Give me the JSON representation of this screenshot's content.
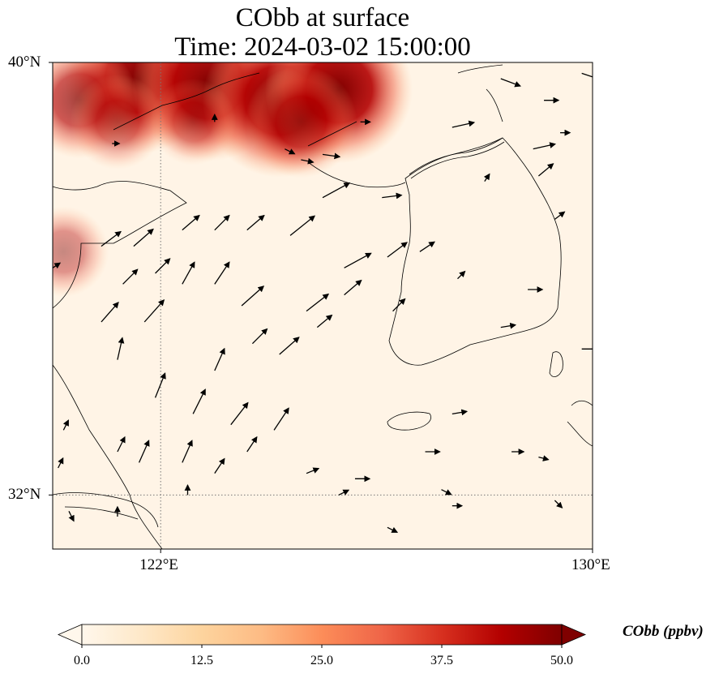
{
  "title": {
    "line1": "CObb at surface",
    "line2": "Time: 2024-03-02 15:00:00"
  },
  "map": {
    "lat_range": [
      31,
      40
    ],
    "lon_range": [
      120,
      130
    ],
    "gridlines": {
      "lats": [
        32
      ],
      "lons": [
        122
      ]
    },
    "yticks": [
      {
        "lat": 40,
        "label": "40°N"
      },
      {
        "lat": 32,
        "label": "32°N"
      }
    ],
    "xticks": [
      {
        "lon": 122,
        "label": "122°E"
      },
      {
        "lon": 130,
        "label": "130°E"
      }
    ],
    "plume": {
      "description_color": "#7f0000",
      "blobs": [
        {
          "lon": 121.6,
          "lat": 39.7,
          "value": 48
        },
        {
          "lon": 122.9,
          "lat": 39.6,
          "value": 50
        },
        {
          "lon": 124.2,
          "lat": 39.3,
          "value": 50
        },
        {
          "lon": 125.3,
          "lat": 39.5,
          "value": 47
        },
        {
          "lon": 120.5,
          "lat": 39.3,
          "value": 32
        },
        {
          "lon": 121.2,
          "lat": 38.9,
          "value": 22
        },
        {
          "lon": 122.6,
          "lat": 38.9,
          "value": 18
        },
        {
          "lon": 120.2,
          "lat": 36.5,
          "value": 20
        },
        {
          "lon": 124.6,
          "lat": 38.9,
          "value": 30
        }
      ]
    },
    "wind_vectors": [
      {
        "lon": 120.9,
        "lat": 36.6,
        "u": 0.4,
        "v": 0.3
      },
      {
        "lon": 121.5,
        "lat": 36.6,
        "u": 0.4,
        "v": 0.35
      },
      {
        "lon": 122.4,
        "lat": 36.9,
        "u": 0.35,
        "v": 0.3
      },
      {
        "lon": 123.0,
        "lat": 36.9,
        "u": 0.3,
        "v": 0.3
      },
      {
        "lon": 123.6,
        "lat": 36.9,
        "u": 0.35,
        "v": 0.3
      },
      {
        "lon": 124.4,
        "lat": 36.8,
        "u": 0.5,
        "v": 0.4
      },
      {
        "lon": 125.0,
        "lat": 37.5,
        "u": 0.55,
        "v": 0.3
      },
      {
        "lon": 123.0,
        "lat": 35.9,
        "u": 0.3,
        "v": 0.45
      },
      {
        "lon": 122.4,
        "lat": 35.9,
        "u": 0.25,
        "v": 0.45
      },
      {
        "lon": 121.9,
        "lat": 36.1,
        "u": 0.3,
        "v": 0.3
      },
      {
        "lon": 121.3,
        "lat": 35.9,
        "u": 0.3,
        "v": 0.3
      },
      {
        "lon": 120.9,
        "lat": 35.2,
        "u": 0.35,
        "v": 0.4
      },
      {
        "lon": 121.7,
        "lat": 35.2,
        "u": 0.4,
        "v": 0.45
      },
      {
        "lon": 123.5,
        "lat": 35.5,
        "u": 0.45,
        "v": 0.4
      },
      {
        "lon": 124.7,
        "lat": 35.4,
        "u": 0.45,
        "v": 0.35
      },
      {
        "lon": 125.4,
        "lat": 36.2,
        "u": 0.55,
        "v": 0.3
      },
      {
        "lon": 126.2,
        "lat": 36.4,
        "u": 0.4,
        "v": 0.3
      },
      {
        "lon": 126.3,
        "lat": 35.4,
        "u": 0.25,
        "v": 0.25
      },
      {
        "lon": 124.2,
        "lat": 34.6,
        "u": 0.4,
        "v": 0.35
      },
      {
        "lon": 123.0,
        "lat": 34.3,
        "u": 0.2,
        "v": 0.45
      },
      {
        "lon": 122.6,
        "lat": 33.5,
        "u": 0.25,
        "v": 0.5
      },
      {
        "lon": 123.3,
        "lat": 33.3,
        "u": 0.35,
        "v": 0.45
      },
      {
        "lon": 124.1,
        "lat": 33.2,
        "u": 0.3,
        "v": 0.45
      },
      {
        "lon": 121.9,
        "lat": 33.8,
        "u": 0.2,
        "v": 0.5
      },
      {
        "lon": 121.2,
        "lat": 32.8,
        "u": 0.15,
        "v": 0.3
      },
      {
        "lon": 121.6,
        "lat": 32.6,
        "u": 0.2,
        "v": 0.45
      },
      {
        "lon": 122.4,
        "lat": 32.6,
        "u": 0.2,
        "v": 0.45
      },
      {
        "lon": 123.0,
        "lat": 32.4,
        "u": 0.2,
        "v": 0.3
      },
      {
        "lon": 123.6,
        "lat": 32.8,
        "u": 0.2,
        "v": 0.3
      },
      {
        "lon": 124.7,
        "lat": 32.4,
        "u": 0.25,
        "v": 0.1
      },
      {
        "lon": 125.3,
        "lat": 32.0,
        "u": 0.2,
        "v": 0.1
      },
      {
        "lon": 125.6,
        "lat": 32.3,
        "u": 0.3,
        "v": 0.0
      },
      {
        "lon": 126.9,
        "lat": 32.8,
        "u": 0.3,
        "v": 0.0
      },
      {
        "lon": 127.4,
        "lat": 33.5,
        "u": 0.3,
        "v": 0.05
      },
      {
        "lon": 127.2,
        "lat": 32.1,
        "u": 0.2,
        "v": -0.1
      },
      {
        "lon": 126.2,
        "lat": 31.4,
        "u": 0.2,
        "v": -0.1
      },
      {
        "lon": 127.4,
        "lat": 31.8,
        "u": 0.2,
        "v": 0.0
      },
      {
        "lon": 128.5,
        "lat": 32.8,
        "u": 0.25,
        "v": 0.0
      },
      {
        "lon": 129.0,
        "lat": 32.7,
        "u": 0.2,
        "v": -0.05
      },
      {
        "lon": 129.3,
        "lat": 31.9,
        "u": 0.15,
        "v": -0.15
      },
      {
        "lon": 123.7,
        "lat": 34.8,
        "u": 0.3,
        "v": 0.3
      },
      {
        "lon": 121.2,
        "lat": 34.5,
        "u": 0.1,
        "v": 0.45
      },
      {
        "lon": 125.4,
        "lat": 35.7,
        "u": 0.35,
        "v": 0.3
      },
      {
        "lon": 124.9,
        "lat": 35.1,
        "u": 0.3,
        "v": 0.25
      },
      {
        "lon": 126.8,
        "lat": 36.5,
        "u": 0.3,
        "v": 0.2
      },
      {
        "lon": 128.8,
        "lat": 35.8,
        "u": 0.3,
        "v": 0.0
      },
      {
        "lon": 129.8,
        "lat": 34.7,
        "u": 0.35,
        "v": 0.0
      },
      {
        "lon": 127.5,
        "lat": 36.0,
        "u": 0.15,
        "v": 0.15
      },
      {
        "lon": 126.1,
        "lat": 37.5,
        "u": 0.4,
        "v": 0.05
      },
      {
        "lon": 128.3,
        "lat": 35.1,
        "u": 0.3,
        "v": 0.05
      },
      {
        "lon": 128.0,
        "lat": 37.8,
        "u": 0.1,
        "v": 0.15
      },
      {
        "lon": 128.9,
        "lat": 38.4,
        "u": 0.45,
        "v": 0.1
      },
      {
        "lon": 129.0,
        "lat": 37.9,
        "u": 0.3,
        "v": 0.25
      },
      {
        "lon": 129.3,
        "lat": 37.1,
        "u": 0.2,
        "v": 0.15
      },
      {
        "lon": 129.4,
        "lat": 38.7,
        "u": 0.2,
        "v": 0.0
      },
      {
        "lon": 129.1,
        "lat": 39.3,
        "u": 0.3,
        "v": 0.0
      },
      {
        "lon": 128.3,
        "lat": 39.7,
        "u": 0.4,
        "v": -0.15
      },
      {
        "lon": 129.8,
        "lat": 39.8,
        "u": 0.45,
        "v": -0.15
      },
      {
        "lon": 127.4,
        "lat": 38.8,
        "u": 0.45,
        "v": 0.1
      },
      {
        "lon": 125.0,
        "lat": 38.3,
        "u": 0.35,
        "v": -0.05
      },
      {
        "lon": 124.3,
        "lat": 38.4,
        "u": 0.2,
        "v": -0.1
      },
      {
        "lon": 123.0,
        "lat": 38.9,
        "u": 0.0,
        "v": 0.15
      },
      {
        "lon": 121.1,
        "lat": 38.5,
        "u": 0.15,
        "v": 0.0
      },
      {
        "lon": 125.7,
        "lat": 38.9,
        "u": 0.2,
        "v": 0.0
      },
      {
        "lon": 124.6,
        "lat": 38.2,
        "u": 0.25,
        "v": -0.05
      },
      {
        "lon": 120.1,
        "lat": 32.5,
        "u": 0.1,
        "v": 0.2
      },
      {
        "lon": 120.3,
        "lat": 31.7,
        "u": 0.1,
        "v": -0.2
      },
      {
        "lon": 121.2,
        "lat": 31.6,
        "u": 0.0,
        "v": 0.2
      },
      {
        "lon": 120.2,
        "lat": 33.2,
        "u": 0.1,
        "v": 0.2
      },
      {
        "lon": 120.0,
        "lat": 36.2,
        "u": 0.15,
        "v": 0.1
      },
      {
        "lon": 122.5,
        "lat": 32.0,
        "u": 0.0,
        "v": 0.2
      }
    ]
  },
  "colorbar": {
    "label": "CObb (ppbv)",
    "min": 0,
    "max": 50,
    "extend": "both",
    "cmap": "OrRd",
    "stops": [
      "#fff7ec",
      "#fee8c8",
      "#fdd49e",
      "#fdbb84",
      "#fc8d59",
      "#ef6548",
      "#d7301f",
      "#b30000",
      "#7f0000"
    ],
    "ticks": [
      {
        "value": 0,
        "label": "0.0"
      },
      {
        "value": 12.5,
        "label": "12.5"
      },
      {
        "value": 25,
        "label": "25.0"
      },
      {
        "value": 37.5,
        "label": "37.5"
      },
      {
        "value": 50,
        "label": "50.0"
      }
    ]
  }
}
